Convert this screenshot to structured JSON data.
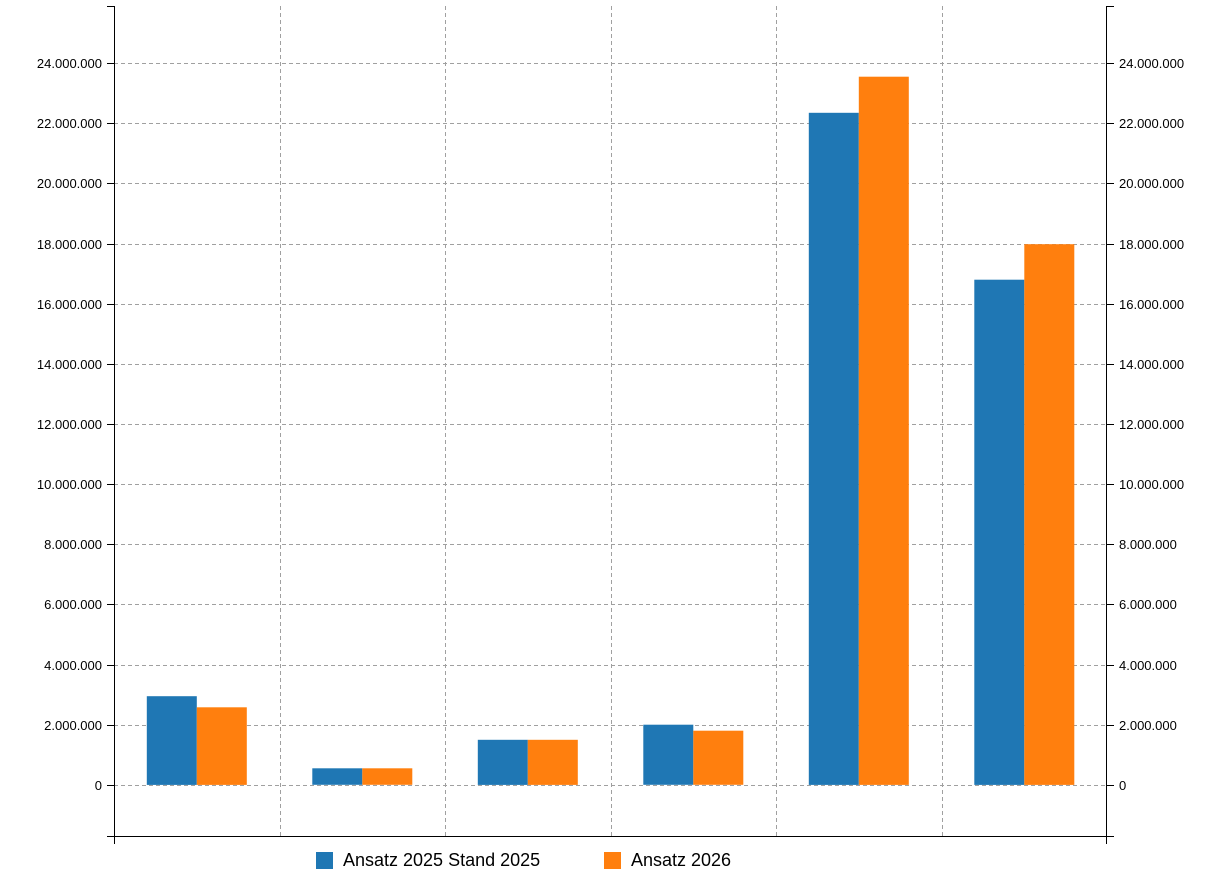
{
  "chart_data": {
    "type": "bar",
    "categories": [
      "",
      "",
      "",
      "",
      "",
      ""
    ],
    "series": [
      {
        "name": "Ansatz 2025 Stand 2025",
        "color": "#1f77b4",
        "values": [
          2950000,
          550000,
          1500000,
          2000000,
          22350000,
          16800000
        ]
      },
      {
        "name": "Ansatz 2026",
        "color": "#ff7f0e",
        "values": [
          2580000,
          550000,
          1500000,
          1800000,
          23550000,
          17980000
        ]
      }
    ],
    "ylim": [
      -1700000,
      25900000
    ],
    "yticks": [
      0,
      2000000,
      4000000,
      6000000,
      8000000,
      10000000,
      12000000,
      14000000,
      16000000,
      18000000,
      20000000,
      22000000,
      24000000
    ],
    "ytick_labels": [
      "0",
      "2.000.000",
      "4.000.000",
      "6.000.000",
      "8.000.000",
      "10.000.000",
      "12.000.000",
      "14.000.000",
      "16.000.000",
      "18.000.000",
      "20.000.000",
      "22.000.000",
      "24.000.000"
    ],
    "grid": true,
    "legend_position": "bottom-center",
    "xlabel": "",
    "ylabel": ""
  },
  "legend": {
    "item1": "Ansatz 2025 Stand 2025",
    "item2": "Ansatz 2026"
  }
}
